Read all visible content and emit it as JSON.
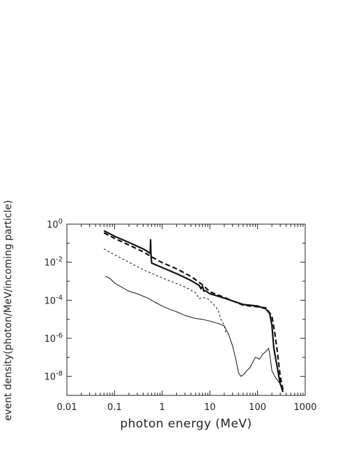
{
  "chart_data": {
    "type": "line",
    "title": "",
    "xlabel": "photon energy (MeV)",
    "ylabel": "event density(photon/MeV/incoming particle)",
    "x_scale": "log",
    "y_scale": "log",
    "xlim": [
      0.01,
      1000
    ],
    "ylim": [
      1e-09,
      1
    ],
    "x_ticks": [
      {
        "value": 0.01,
        "label": "0.01"
      },
      {
        "value": 0.1,
        "label": "0.1"
      },
      {
        "value": 1,
        "label": "1"
      },
      {
        "value": 10,
        "label": "10"
      },
      {
        "value": 100,
        "label": "100"
      },
      {
        "value": 1000,
        "label": "1000"
      }
    ],
    "y_ticks": [
      {
        "value": 1,
        "base": "10",
        "exp": "0"
      },
      {
        "value": 0.01,
        "base": "10",
        "exp": "-2"
      },
      {
        "value": 0.0001,
        "base": "10",
        "exp": "-4"
      },
      {
        "value": 1e-06,
        "base": "10",
        "exp": "-6"
      },
      {
        "value": 1e-08,
        "base": "10",
        "exp": "-8"
      }
    ],
    "grid": false,
    "series": [
      {
        "style": "thick-solid",
        "x": [
          0.06,
          0.1,
          0.2,
          0.4,
          0.55,
          0.56,
          0.57,
          0.58,
          0.6,
          1,
          2,
          4,
          6,
          6.5,
          7,
          7.5,
          8,
          10,
          20,
          50,
          100,
          150,
          180,
          200,
          220,
          250,
          280,
          300,
          320,
          340
        ],
        "y": [
          0.45,
          0.23,
          0.11,
          0.05,
          0.03,
          0.03,
          0.15,
          0.03,
          0.009,
          0.0052,
          0.0025,
          0.0011,
          0.0006,
          0.0004,
          0.00055,
          0.0003,
          0.00032,
          0.00022,
          0.00013,
          6e-05,
          5e-05,
          3.5e-05,
          2e-05,
          5e-06,
          3e-07,
          5e-08,
          1e-08,
          4e-09,
          2.5e-09,
          1.5e-09
        ]
      },
      {
        "style": "thick-dashed",
        "x": [
          0.06,
          0.1,
          0.2,
          0.4,
          0.6,
          1,
          2,
          4,
          7,
          10,
          20,
          50,
          100,
          150,
          200,
          230,
          260,
          300,
          350
        ],
        "y": [
          0.35,
          0.18,
          0.08,
          0.035,
          0.019,
          0.0095,
          0.0045,
          0.0018,
          0.00065,
          0.00028,
          0.00014,
          5.5e-05,
          4.5e-05,
          4e-05,
          1.5e-05,
          2e-06,
          2e-07,
          1e-08,
          1.5e-09
        ]
      },
      {
        "style": "thin-dashed",
        "x": [
          0.06,
          0.1,
          0.2,
          0.4,
          0.7,
          1,
          2,
          3,
          5,
          6,
          7,
          9,
          12,
          15,
          17,
          20,
          22
        ],
        "y": [
          0.05,
          0.025,
          0.01,
          0.004,
          0.0022,
          0.0015,
          0.00075,
          0.0005,
          0.00025,
          0.00012,
          0.00014,
          0.00012,
          6e-05,
          3e-05,
          1e-05,
          5e-06,
          1.5e-06
        ]
      },
      {
        "style": "thin-solid",
        "x": [
          0.065,
          0.08,
          0.1,
          0.15,
          0.2,
          0.3,
          0.5,
          0.7,
          1,
          1.5,
          2,
          3,
          5,
          7,
          10,
          15,
          20,
          25,
          30,
          35,
          40,
          45,
          50,
          60,
          70,
          90,
          110,
          130,
          150,
          170,
          180,
          200,
          230,
          280,
          330
        ],
        "y": [
          0.0018,
          0.0014,
          0.0008,
          0.00045,
          0.0003,
          0.00022,
          0.00013,
          8e-05,
          5e-05,
          3.2e-05,
          2.5e-05,
          1.6e-05,
          1.1e-05,
          1e-05,
          8e-06,
          6e-06,
          4.5e-06,
          1.5e-06,
          4e-07,
          8e-08,
          1.5e-08,
          1e-08,
          1.2e-08,
          2e-08,
          3e-08,
          1e-07,
          8e-08,
          1.5e-07,
          2e-07,
          3e-07,
          1.5e-07,
          2e-08,
          1e-08,
          5e-09,
          3e-09
        ]
      }
    ]
  }
}
